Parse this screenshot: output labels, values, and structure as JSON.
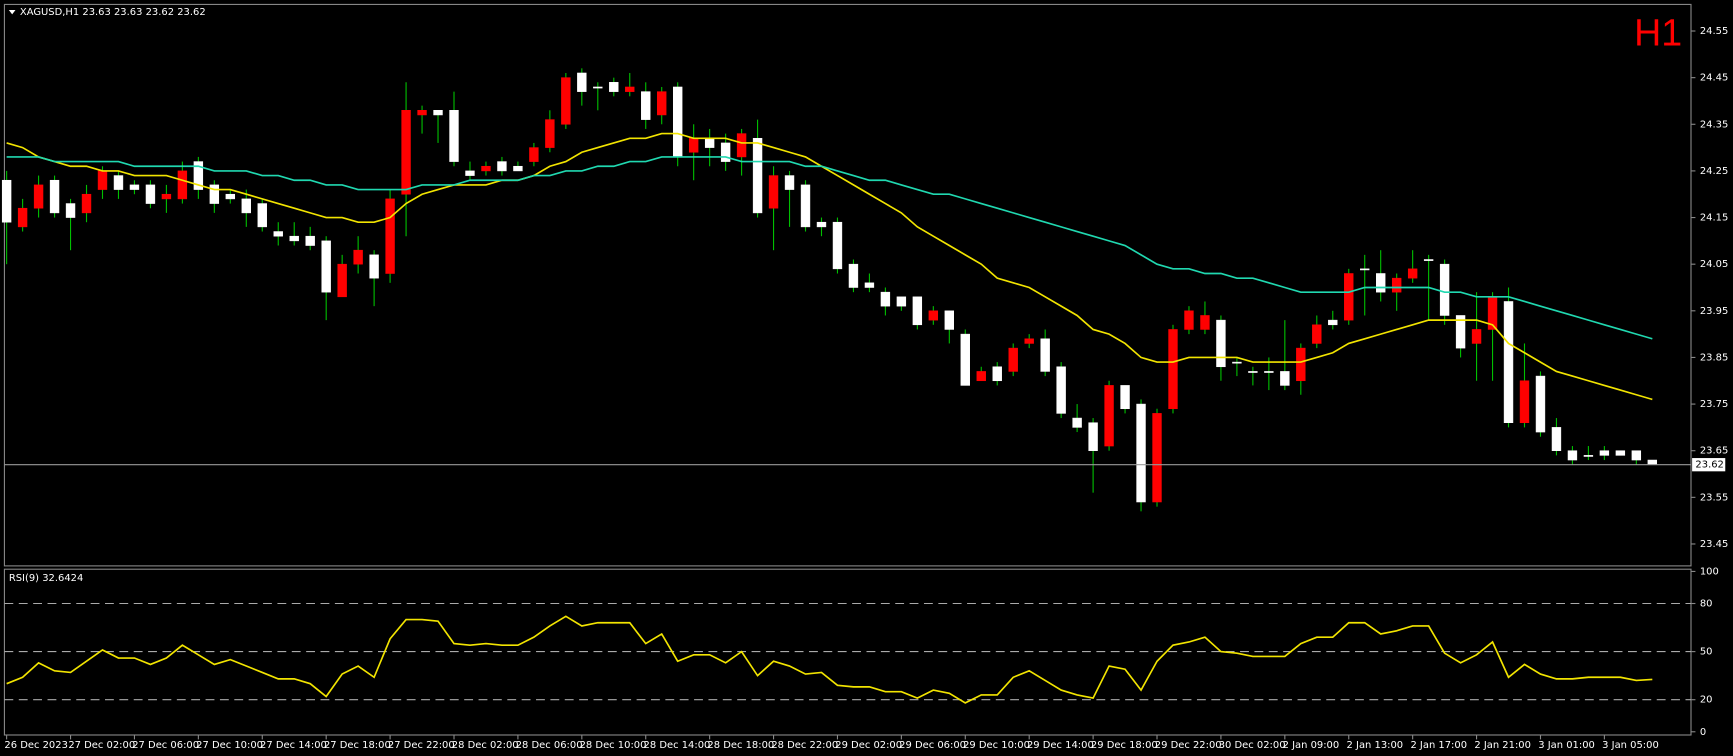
{
  "chart_data": [
    {
      "type": "candlestick",
      "title": "XAGUSD,H1  23.63 23.63 23.62 23.62",
      "timeframe_label": "H1",
      "categories": [
        "26 Dec 2023",
        null,
        null,
        null,
        "27 Dec 02:00",
        null,
        null,
        null,
        "27 Dec 06:00",
        null,
        null,
        null,
        "27 Dec 10:00",
        null,
        null,
        null,
        "27 Dec 14:00",
        null,
        null,
        null,
        "27 Dec 18:00",
        null,
        null,
        null,
        "27 Dec 22:00",
        null,
        null,
        null,
        "28 Dec 02:00",
        null,
        null,
        null,
        "28 Dec 06:00",
        null,
        null,
        null,
        "28 Dec 10:00",
        null,
        null,
        null,
        "28 Dec 14:00",
        null,
        null,
        null,
        "28 Dec 18:00",
        null,
        null,
        null,
        "28 Dec 22:00",
        null,
        null,
        null,
        "29 Dec 02:00",
        null,
        null,
        null,
        "29 Dec 06:00",
        null,
        null,
        null,
        "29 Dec 10:00",
        null,
        null,
        null,
        "29 Dec 14:00",
        null,
        null,
        null,
        "29 Dec 18:00",
        null,
        null,
        null,
        "29 Dec 22:00",
        null,
        null,
        null,
        "30 Dec 02:00",
        null,
        null,
        null,
        "2 Jan 09:00",
        null,
        null,
        null,
        "2 Jan 13:00",
        null,
        null,
        null,
        "2 Jan 17:00",
        null,
        null,
        null,
        "2 Jan 21:00",
        null,
        null,
        null,
        "3 Jan 01:00",
        null,
        null,
        null,
        "3 Jan 05:00",
        null,
        null,
        null
      ],
      "open": [
        24.23,
        24.13,
        24.17,
        24.23,
        24.18,
        24.16,
        24.21,
        24.24,
        24.22,
        24.22,
        24.19,
        24.19,
        24.27,
        24.22,
        24.2,
        24.19,
        24.18,
        24.12,
        24.11,
        24.11,
        24.1,
        23.98,
        24.05,
        24.07,
        24.03,
        24.2,
        24.37,
        24.38,
        24.38,
        24.25,
        24.25,
        24.27,
        24.26,
        24.27,
        24.3,
        24.35,
        24.46,
        24.43,
        24.44,
        24.42,
        24.42,
        24.37,
        24.43,
        24.29,
        24.32,
        24.31,
        24.28,
        24.32,
        24.17,
        24.24,
        24.22,
        24.14,
        24.14,
        24.05,
        24.01,
        23.99,
        23.98,
        23.98,
        23.93,
        23.95,
        23.9,
        23.8,
        23.83,
        23.82,
        23.88,
        23.89,
        23.83,
        23.72,
        23.71,
        23.66,
        23.79,
        23.75,
        23.54,
        23.74,
        23.91,
        23.91,
        23.93,
        23.84,
        23.82,
        23.82,
        23.82,
        23.8,
        23.88,
        23.93,
        23.93,
        24.04,
        24.03,
        23.99,
        24.02,
        24.06,
        24.05,
        23.94,
        23.88,
        23.91,
        23.97,
        23.71,
        23.81,
        23.7,
        23.65,
        23.64,
        23.65,
        23.65,
        23.65,
        23.63
      ],
      "high": [
        24.25,
        24.19,
        24.24,
        24.24,
        24.19,
        24.22,
        24.26,
        24.25,
        24.23,
        24.23,
        24.22,
        24.27,
        24.28,
        24.23,
        24.21,
        24.21,
        24.19,
        24.14,
        24.14,
        24.13,
        24.11,
        24.07,
        24.11,
        24.08,
        24.21,
        24.44,
        24.39,
        24.38,
        24.42,
        24.27,
        24.27,
        24.28,
        24.27,
        24.31,
        24.38,
        24.46,
        24.47,
        24.44,
        24.45,
        24.46,
        24.44,
        24.43,
        24.44,
        24.35,
        24.34,
        24.33,
        24.34,
        24.36,
        24.26,
        24.25,
        24.23,
        24.15,
        24.15,
        24.06,
        24.03,
        24.0,
        23.98,
        23.98,
        23.96,
        23.95,
        23.91,
        23.83,
        23.84,
        23.88,
        23.9,
        23.91,
        23.84,
        23.75,
        23.72,
        23.8,
        23.79,
        23.76,
        23.74,
        23.92,
        23.96,
        23.97,
        23.94,
        23.85,
        23.83,
        23.85,
        23.93,
        23.88,
        23.94,
        23.95,
        24.04,
        24.07,
        24.08,
        24.03,
        24.08,
        24.07,
        24.06,
        23.94,
        23.99,
        23.99,
        24.0,
        23.88,
        23.82,
        23.72,
        23.66,
        23.66,
        23.66,
        23.65,
        23.65,
        23.63
      ],
      "low": [
        24.05,
        24.12,
        24.15,
        24.15,
        24.08,
        24.14,
        24.19,
        24.19,
        24.2,
        24.17,
        24.16,
        24.18,
        24.19,
        24.16,
        24.18,
        24.13,
        24.12,
        24.09,
        24.09,
        24.08,
        23.93,
        23.98,
        24.03,
        23.96,
        24.01,
        24.11,
        24.33,
        24.31,
        24.26,
        24.23,
        24.24,
        24.24,
        24.25,
        24.26,
        24.29,
        24.34,
        24.39,
        24.38,
        24.41,
        24.41,
        24.34,
        24.35,
        24.26,
        24.23,
        24.26,
        24.25,
        24.24,
        24.15,
        24.08,
        24.13,
        24.12,
        24.11,
        24.03,
        23.99,
        23.99,
        23.94,
        23.95,
        23.91,
        23.92,
        23.88,
        23.79,
        23.8,
        23.79,
        23.81,
        23.87,
        23.81,
        23.72,
        23.69,
        23.56,
        23.65,
        23.73,
        23.52,
        23.53,
        23.73,
        23.9,
        23.9,
        23.8,
        23.81,
        23.79,
        23.78,
        23.78,
        23.77,
        23.87,
        23.91,
        23.92,
        23.94,
        23.97,
        23.95,
        24.01,
        23.93,
        23.92,
        23.85,
        23.8,
        23.8,
        23.7,
        23.7,
        23.68,
        23.64,
        23.62,
        23.63,
        23.63,
        23.64,
        23.62,
        23.62
      ],
      "close": [
        24.14,
        24.17,
        24.22,
        24.16,
        24.15,
        24.2,
        24.25,
        24.21,
        24.21,
        24.18,
        24.2,
        24.25,
        24.21,
        24.18,
        24.19,
        24.16,
        24.13,
        24.11,
        24.1,
        24.09,
        23.99,
        24.05,
        24.08,
        24.02,
        24.19,
        24.38,
        24.38,
        24.37,
        24.27,
        24.24,
        24.26,
        24.25,
        24.25,
        24.3,
        24.36,
        24.45,
        24.42,
        24.43,
        24.42,
        24.43,
        24.36,
        24.42,
        24.28,
        24.32,
        24.3,
        24.27,
        24.33,
        24.16,
        24.24,
        24.21,
        24.13,
        24.13,
        24.04,
        24.0,
        24.0,
        23.96,
        23.96,
        23.92,
        23.95,
        23.91,
        23.79,
        23.82,
        23.8,
        23.87,
        23.89,
        23.82,
        23.73,
        23.7,
        23.65,
        23.79,
        23.74,
        23.54,
        23.73,
        23.91,
        23.95,
        23.94,
        23.83,
        23.84,
        23.82,
        23.82,
        23.79,
        23.87,
        23.92,
        23.92,
        24.03,
        24.04,
        23.99,
        24.02,
        24.04,
        24.06,
        23.94,
        23.87,
        23.91,
        23.98,
        23.71,
        23.8,
        23.69,
        23.65,
        23.63,
        23.64,
        23.64,
        23.64,
        23.63,
        23.62
      ],
      "up_color": "#ff0000",
      "down_color": "#ffffff",
      "wick_color": "#00c000",
      "series": [
        {
          "color": "#f2e400",
          "values": [
            24.31,
            24.3,
            24.28,
            24.27,
            24.26,
            24.26,
            24.25,
            24.25,
            24.24,
            24.24,
            24.24,
            24.23,
            24.22,
            24.21,
            24.21,
            24.2,
            24.19,
            24.18,
            24.17,
            24.16,
            24.15,
            24.15,
            24.14,
            24.14,
            24.15,
            24.18,
            24.2,
            24.21,
            24.22,
            24.22,
            24.22,
            24.23,
            24.23,
            24.24,
            24.26,
            24.27,
            24.29,
            24.3,
            24.31,
            24.32,
            24.32,
            24.33,
            24.33,
            24.32,
            24.32,
            24.32,
            24.31,
            24.31,
            24.3,
            24.29,
            24.28,
            24.26,
            24.24,
            24.22,
            24.2,
            24.18,
            24.16,
            24.13,
            24.11,
            24.09,
            24.07,
            24.05,
            24.02,
            24.01,
            24.0,
            23.98,
            23.96,
            23.94,
            23.91,
            23.9,
            23.88,
            23.85,
            23.84,
            23.84,
            23.85,
            23.85,
            23.85,
            23.85,
            23.84,
            23.84,
            23.84,
            23.84,
            23.85,
            23.86,
            23.88,
            23.89,
            23.9,
            23.91,
            23.92,
            23.93,
            23.93,
            23.93,
            23.93,
            23.92,
            23.88,
            23.86,
            23.84,
            23.82,
            23.81,
            23.8,
            23.79,
            23.78,
            23.77,
            23.76
          ]
        },
        {
          "color": "#20d8b0",
          "values": [
            24.28,
            24.28,
            24.28,
            24.27,
            24.27,
            24.27,
            24.27,
            24.27,
            24.26,
            24.26,
            24.26,
            24.26,
            24.26,
            24.25,
            24.25,
            24.25,
            24.24,
            24.24,
            24.23,
            24.23,
            24.22,
            24.22,
            24.21,
            24.21,
            24.21,
            24.21,
            24.22,
            24.22,
            24.22,
            24.23,
            24.23,
            24.23,
            24.23,
            24.24,
            24.24,
            24.25,
            24.25,
            24.26,
            24.26,
            24.27,
            24.27,
            24.28,
            24.28,
            24.28,
            24.28,
            24.28,
            24.27,
            24.27,
            24.27,
            24.27,
            24.26,
            24.26,
            24.25,
            24.24,
            24.23,
            24.23,
            24.22,
            24.21,
            24.2,
            24.2,
            24.19,
            24.18,
            24.17,
            24.16,
            24.15,
            24.14,
            24.13,
            24.12,
            24.11,
            24.1,
            24.09,
            24.07,
            24.05,
            24.04,
            24.04,
            24.03,
            24.03,
            24.02,
            24.02,
            24.01,
            24.0,
            23.99,
            23.99,
            23.99,
            23.99,
            24.0,
            24.0,
            24.0,
            24.0,
            24.0,
            23.99,
            23.99,
            23.98,
            23.98,
            23.98,
            23.97,
            23.96,
            23.95,
            23.94,
            23.93,
            23.92,
            23.91,
            23.9,
            23.89
          ]
        }
      ],
      "last_price": 23.62,
      "ylim": [
        23.403,
        24.607
      ],
      "yticks": [
        24.55,
        24.45,
        24.35,
        24.25,
        24.15,
        24.05,
        23.95,
        23.85,
        23.75,
        23.65,
        23.55,
        23.45
      ]
    },
    {
      "type": "line",
      "title": "RSI(9) 32.6424",
      "color": "#f2e400",
      "values": [
        30,
        34,
        43,
        38,
        37,
        44,
        51,
        46,
        46,
        42,
        46,
        54,
        48,
        42,
        45,
        41,
        37,
        33,
        33,
        30,
        22,
        36,
        41,
        34,
        58,
        70,
        70,
        69,
        55,
        54,
        55,
        54,
        54,
        59,
        66,
        72,
        66,
        68,
        68,
        68,
        55,
        61,
        44,
        48,
        48,
        43,
        50,
        35,
        44,
        41,
        36,
        37,
        29,
        28,
        28,
        25,
        25,
        21,
        26,
        24,
        18,
        23,
        23,
        34,
        38,
        32,
        26,
        23,
        21,
        41,
        39,
        26,
        44,
        54,
        56,
        59,
        50,
        49,
        47,
        47,
        47,
        55,
        59,
        59,
        68,
        68,
        61,
        63,
        66,
        66,
        49,
        43,
        48,
        56,
        34,
        42,
        36,
        33,
        33,
        34,
        34,
        34,
        32,
        32.6424
      ],
      "levels": [
        20,
        50,
        80
      ],
      "ylim": [
        -2,
        100.7
      ],
      "yticks": [
        100,
        80,
        50,
        20,
        0
      ]
    }
  ]
}
